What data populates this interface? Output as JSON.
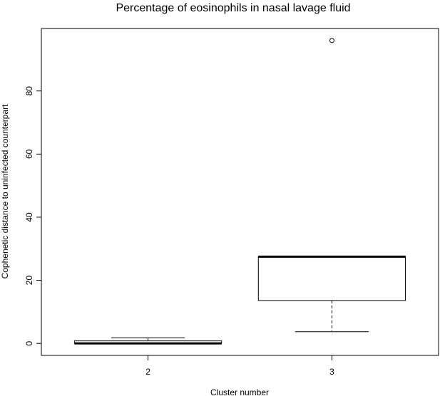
{
  "chart_data": {
    "type": "boxplot",
    "title": "Percentage of eosinophils in nasal lavage fluid",
    "xlabel": "Cluster number",
    "ylabel": "Cophenetic distance to uninfected counterpart",
    "categories": [
      "2",
      "3"
    ],
    "boxes": [
      {
        "category": "2",
        "whisker_low": 0,
        "q1": 0,
        "median": 0,
        "q3": 0.8,
        "whisker_high": 1.8,
        "outliers": []
      },
      {
        "category": "3",
        "whisker_low": 3.7,
        "q1": 13.6,
        "median": 27.5,
        "q3": 27.5,
        "whisker_high": 27.5,
        "outliers": [
          96
        ]
      }
    ],
    "ylim": [
      -3.8,
      99.8
    ],
    "yticks": [
      0,
      20,
      40,
      60,
      80
    ],
    "ytick_labels": [
      "0",
      "20",
      "40",
      "60",
      "80"
    ],
    "grid": false,
    "legend": "none"
  }
}
